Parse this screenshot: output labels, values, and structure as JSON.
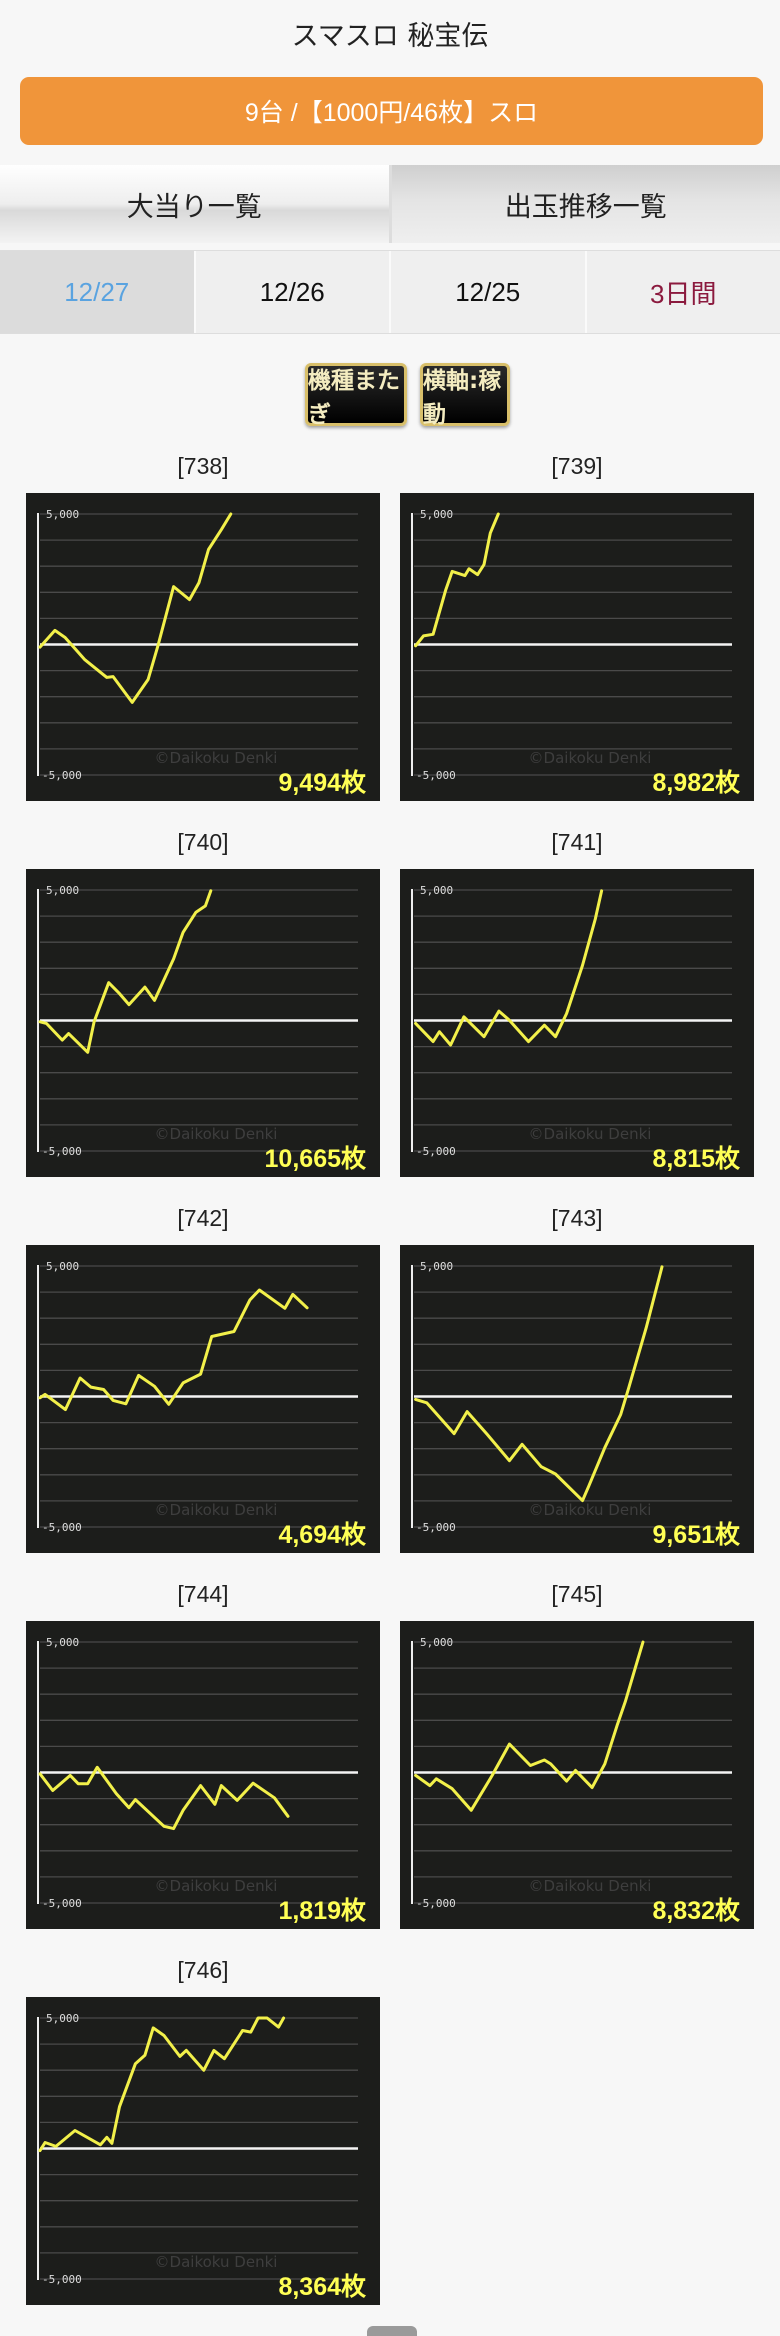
{
  "header": {
    "title": "スマスロ 秘宝伝"
  },
  "banner": {
    "text": "9台 /【1000円/46枚】スロ"
  },
  "tabs": [
    {
      "label": "大当り一覧"
    },
    {
      "label": "出玉推移一覧"
    }
  ],
  "dates": [
    {
      "label": "12/27",
      "selected": true
    },
    {
      "label": "12/26"
    },
    {
      "label": "12/25"
    },
    {
      "label": "3日間"
    }
  ],
  "buttons": {
    "cross_model": "機種またぎ",
    "x_axis": "横軸:稼動"
  },
  "colors": {
    "accent": "#f0953a",
    "line": "#f2f04a",
    "selected_date": "#5aa3e0",
    "range_date": "#8b1a3e",
    "total": "#ffff55"
  },
  "chart_data": [
    {
      "type": "line",
      "label": "[738]",
      "total": "9,494枚",
      "watermark": "©Daikoku Denki",
      "yticks": [
        "5,000",
        "-5,000"
      ],
      "ylim": [
        -5000,
        5000
      ],
      "xlim": [
        0,
        100
      ],
      "grid": true,
      "x": [
        0,
        4.7,
        7.9,
        14,
        21,
        23,
        29,
        34,
        37,
        42,
        47,
        50,
        53,
        57,
        60
      ],
      "y": [
        -100,
        540,
        270,
        -570,
        -1260,
        -1230,
        -2220,
        -1340,
        -80,
        2220,
        1720,
        2370,
        3640,
        4400,
        5000
      ]
    },
    {
      "type": "line",
      "label": "[739]",
      "total": "8,982枚",
      "watermark": "©Daikoku Denki",
      "yticks": [
        "5,000",
        "-5,000"
      ],
      "ylim": [
        -5000,
        5000
      ],
      "xlim": [
        0,
        100
      ],
      "grid": true,
      "x": [
        0.5,
        3,
        6,
        10,
        12,
        16,
        17.3,
        20,
        22,
        24,
        26.5
      ],
      "y": [
        -50,
        330,
        390,
        2100,
        2800,
        2640,
        2900,
        2680,
        3060,
        4270,
        5000
      ]
    },
    {
      "type": "line",
      "label": "[740]",
      "total": "10,665枚",
      "watermark": "©Daikoku Denki",
      "yticks": [
        "5,000",
        "-5,000"
      ],
      "ylim": [
        -5000,
        5000
      ],
      "xlim": [
        0,
        100
      ],
      "grid": true,
      "x": [
        0,
        2,
        7,
        9,
        15,
        17,
        21.6,
        25,
        28,
        33,
        36,
        42,
        45,
        49,
        52,
        53.7
      ],
      "y": [
        -50,
        -110,
        -750,
        -500,
        -1220,
        -50,
        1450,
        1030,
        610,
        1280,
        770,
        2360,
        3380,
        4140,
        4390,
        4970
      ]
    },
    {
      "type": "line",
      "label": "[741]",
      "total": "8,815枚",
      "watermark": "©Daikoku Denki",
      "yticks": [
        "5,000",
        "-5,000"
      ],
      "ylim": [
        -5000,
        5000
      ],
      "xlim": [
        0,
        100
      ],
      "grid": true,
      "x": [
        0.5,
        6,
        8,
        11.5,
        15.7,
        22,
        26.7,
        30,
        36,
        41,
        44.5,
        48,
        53,
        57,
        59
      ],
      "y": [
        -110,
        -810,
        -430,
        -940,
        140,
        -620,
        360,
        10,
        -810,
        -180,
        -620,
        270,
        2110,
        3890,
        4970
      ]
    },
    {
      "type": "line",
      "label": "[742]",
      "total": "4,694枚",
      "watermark": "©Daikoku Denki",
      "yticks": [
        "5,000",
        "-5,000"
      ],
      "ylim": [
        -5000,
        5000
      ],
      "xlim": [
        0,
        100
      ],
      "grid": true,
      "x": [
        0,
        1.6,
        8,
        12.6,
        16,
        20,
        23,
        27,
        31,
        36,
        40.5,
        45,
        50.5,
        54,
        61,
        66,
        69,
        77,
        79.5,
        84
      ],
      "y": [
        -50,
        80,
        -500,
        710,
        360,
        270,
        -150,
        -280,
        810,
        390,
        -300,
        520,
        860,
        2300,
        2490,
        3700,
        4080,
        3380,
        3910,
        3400
      ]
    },
    {
      "type": "line",
      "label": "[743]",
      "total": "9,651枚",
      "watermark": "©Daikoku Denki",
      "yticks": [
        "5,000",
        "-5,000"
      ],
      "ylim": [
        -5000,
        5000
      ],
      "xlim": [
        0,
        100
      ],
      "grid": true,
      "x": [
        0.5,
        4,
        12.6,
        16.7,
        23,
        30,
        34,
        40,
        44.5,
        53,
        55,
        60,
        65,
        67.5,
        73,
        78
      ],
      "y": [
        -110,
        -240,
        -1420,
        -580,
        -1450,
        -2460,
        -1830,
        -2690,
        -2970,
        -3990,
        -3420,
        -1960,
        -690,
        330,
        2620,
        4970
      ]
    },
    {
      "type": "line",
      "label": "[744]",
      "total": "1,819枚",
      "watermark": "©Daikoku Denki",
      "yticks": [
        "5,000",
        "-5,000"
      ],
      "ylim": [
        -5000,
        5000
      ],
      "xlim": [
        0,
        100
      ],
      "grid": true,
      "x": [
        0,
        4,
        9.5,
        12,
        15,
        18,
        24,
        28,
        30,
        39,
        42,
        45,
        50.5,
        55,
        57,
        62,
        67,
        73.7,
        78
      ],
      "y": [
        -50,
        -690,
        -110,
        -430,
        -430,
        200,
        -810,
        -1350,
        -1040,
        -2060,
        -2150,
        -1450,
        -500,
        -1220,
        -500,
        -1070,
        -410,
        -970,
        -1680
      ]
    },
    {
      "type": "line",
      "label": "[745]",
      "total": "8,832枚",
      "watermark": "©Daikoku Denki",
      "yticks": [
        "5,000",
        "-5,000"
      ],
      "ylim": [
        -5000,
        5000
      ],
      "xlim": [
        0,
        100
      ],
      "grid": true,
      "x": [
        0.5,
        5,
        7,
        12,
        18,
        24.6,
        30,
        36.6,
        41,
        43,
        48,
        50.8,
        56,
        60,
        64,
        66.5,
        69.6,
        72
      ],
      "y": [
        -110,
        -500,
        -240,
        -620,
        -1450,
        -110,
        1090,
        270,
        480,
        330,
        -330,
        80,
        -580,
        330,
        1850,
        2740,
        4010,
        5000
      ]
    },
    {
      "type": "line",
      "label": "[746]",
      "total": "8,364枚",
      "watermark": "©Daikoku Denki",
      "yticks": [
        "5,000",
        "-5,000"
      ],
      "ylim": [
        -5000,
        5000
      ],
      "xlim": [
        0,
        100
      ],
      "grid": true,
      "x": [
        0,
        1.6,
        5,
        11,
        19,
        21,
        22.6,
        25,
        30,
        33,
        35.6,
        39,
        44,
        46,
        51.5,
        54.7,
        58,
        63.7,
        66.3,
        68.6,
        71.4,
        75,
        76.6
      ],
      "y": [
        -80,
        230,
        80,
        690,
        140,
        430,
        200,
        1600,
        3250,
        3570,
        4620,
        4330,
        3530,
        3760,
        3000,
        3760,
        3440,
        4520,
        4460,
        5000,
        5000,
        4650,
        5000
      ]
    }
  ]
}
